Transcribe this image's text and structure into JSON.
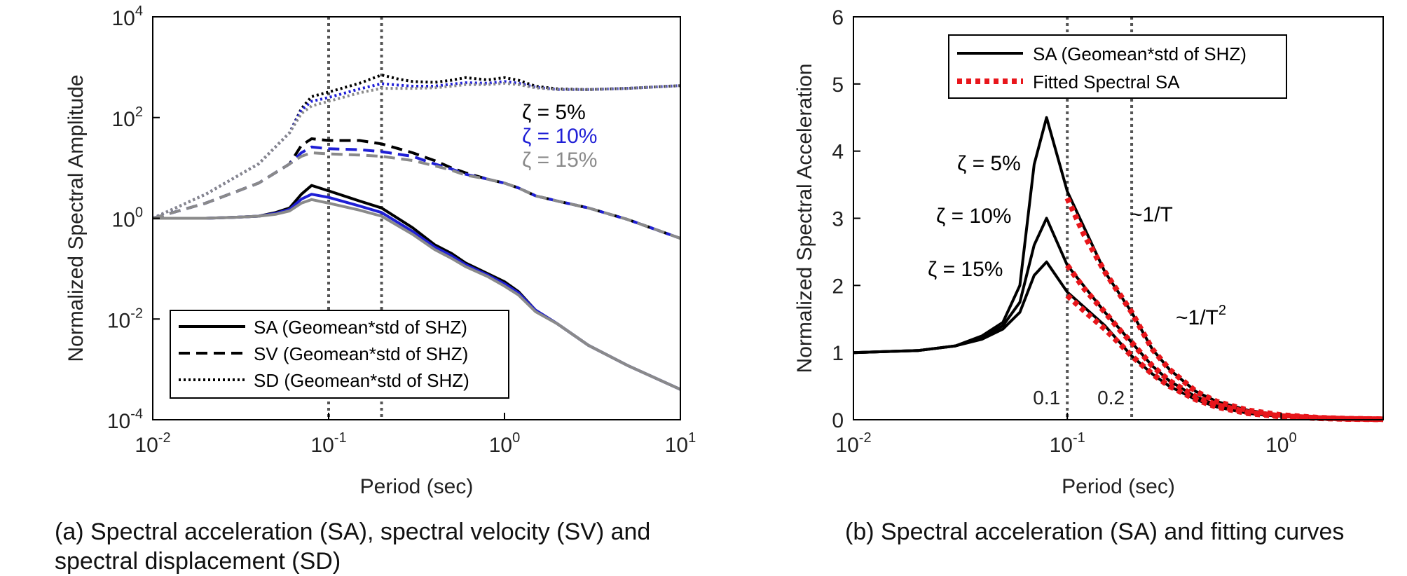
{
  "chart_data": [
    {
      "panel": "a",
      "type": "line",
      "caption": "(a) Spectral acceleration (SA), spectral velocity (SV) and spectral displacement (SD)",
      "xlabel": "Period (sec)",
      "ylabel": "Normalized Spectral Amplitude",
      "xscale": "log",
      "yscale": "log",
      "xlim": [
        0.01,
        10
      ],
      "ylim": [
        0.0001,
        10000
      ],
      "x_ticks": [
        {
          "value": 0.01,
          "label": "10",
          "exp": "-2"
        },
        {
          "value": 0.1,
          "label": "10",
          "exp": "-1"
        },
        {
          "value": 1,
          "label": "10",
          "exp": "0"
        },
        {
          "value": 10,
          "label": "10",
          "exp": "1"
        }
      ],
      "y_ticks": [
        {
          "value": 0.0001,
          "label": "10",
          "exp": "-4"
        },
        {
          "value": 0.01,
          "label": "10",
          "exp": "-2"
        },
        {
          "value": 1,
          "label": "10",
          "exp": "0"
        },
        {
          "value": 100,
          "label": "10",
          "exp": "2"
        },
        {
          "value": 10000,
          "label": "10",
          "exp": "4"
        }
      ],
      "vlines": [
        0.1,
        0.2
      ],
      "grid": false,
      "legend_position": "bottom-left",
      "legend": [
        {
          "label": "SA (Geomean*std of SHZ)",
          "style": "solid"
        },
        {
          "label": "SV (Geomean*std of SHZ)",
          "style": "dashed"
        },
        {
          "label": "SD (Geomean*std of SHZ)",
          "style": "dotted"
        }
      ],
      "annotations": [
        {
          "text": "ζ = 5%",
          "color": "#000000"
        },
        {
          "text": "ζ = 10%",
          "color": "#1f1fd6"
        },
        {
          "text": "ζ = 15%",
          "color": "#8a8a8a"
        }
      ],
      "damping_colors": {
        "5%": "#000000",
        "10%": "#1f1fd6",
        "15%": "#8a8a8a"
      },
      "series": [
        {
          "quantity": "SD",
          "damping": "5%",
          "style": "dotted",
          "color": "#000000",
          "x": [
            0.01,
            0.02,
            0.04,
            0.06,
            0.07,
            0.08,
            0.1,
            0.15,
            0.2,
            0.25,
            0.3,
            0.4,
            0.5,
            0.6,
            0.8,
            1.0,
            1.2,
            1.5,
            2,
            3,
            5,
            10
          ],
          "y": [
            1,
            3,
            12,
            50,
            150,
            260,
            320,
            480,
            700,
            580,
            520,
            500,
            550,
            620,
            560,
            620,
            550,
            420,
            370,
            360,
            380,
            430
          ]
        },
        {
          "quantity": "SD",
          "damping": "10%",
          "style": "dotted",
          "color": "#1f1fd6",
          "x": [
            0.01,
            0.02,
            0.04,
            0.06,
            0.07,
            0.08,
            0.1,
            0.15,
            0.2,
            0.25,
            0.3,
            0.4,
            0.5,
            0.6,
            0.8,
            1.0,
            1.2,
            1.5,
            2,
            3,
            5,
            10
          ],
          "y": [
            1,
            3,
            12,
            50,
            140,
            210,
            250,
            370,
            470,
            440,
            420,
            420,
            460,
            490,
            480,
            520,
            480,
            400,
            360,
            360,
            380,
            430
          ]
        },
        {
          "quantity": "SD",
          "damping": "15%",
          "style": "dotted",
          "color": "#8a8a8a",
          "x": [
            0.01,
            0.02,
            0.04,
            0.06,
            0.07,
            0.08,
            0.1,
            0.15,
            0.2,
            0.25,
            0.3,
            0.4,
            0.5,
            0.6,
            0.8,
            1.0,
            1.2,
            1.5,
            2,
            3,
            5,
            10
          ],
          "y": [
            1,
            3,
            12,
            50,
            120,
            170,
            210,
            310,
            380,
            380,
            380,
            390,
            420,
            450,
            450,
            480,
            450,
            390,
            360,
            360,
            380,
            430
          ]
        },
        {
          "quantity": "SV",
          "damping": "5%",
          "style": "dashed",
          "color": "#000000",
          "x": [
            0.01,
            0.02,
            0.04,
            0.06,
            0.07,
            0.08,
            0.1,
            0.15,
            0.2,
            0.3,
            0.4,
            0.5,
            0.6,
            0.8,
            1.0,
            1.2,
            1.5,
            2,
            3,
            5,
            10
          ],
          "y": [
            1,
            2,
            5,
            12,
            28,
            38,
            35,
            35,
            30,
            20,
            14,
            10,
            8,
            6,
            5,
            4,
            2.8,
            2.2,
            1.6,
            0.95,
            0.4
          ]
        },
        {
          "quantity": "SV",
          "damping": "10%",
          "style": "dashed",
          "color": "#1f1fd6",
          "x": [
            0.01,
            0.02,
            0.04,
            0.06,
            0.07,
            0.08,
            0.1,
            0.15,
            0.2,
            0.3,
            0.4,
            0.5,
            0.6,
            0.8,
            1.0,
            1.2,
            1.5,
            2,
            3,
            5,
            10
          ],
          "y": [
            1,
            2,
            5,
            12,
            20,
            26,
            24,
            23,
            21,
            17,
            12,
            9.5,
            7.5,
            6,
            5,
            4,
            2.8,
            2.2,
            1.6,
            0.95,
            0.4
          ]
        },
        {
          "quantity": "SV",
          "damping": "15%",
          "style": "dashed",
          "color": "#8a8a8a",
          "x": [
            0.01,
            0.02,
            0.04,
            0.06,
            0.07,
            0.08,
            0.1,
            0.15,
            0.2,
            0.3,
            0.4,
            0.5,
            0.6,
            0.8,
            1.0,
            1.2,
            1.5,
            2,
            3,
            5,
            10
          ],
          "y": [
            1,
            2,
            5,
            12,
            17,
            20,
            19,
            18,
            17,
            14,
            11,
            9,
            7.2,
            6,
            5,
            4,
            2.8,
            2.2,
            1.6,
            0.95,
            0.4
          ]
        },
        {
          "quantity": "SA",
          "damping": "5%",
          "style": "solid",
          "color": "#000000",
          "x": [
            0.01,
            0.02,
            0.03,
            0.04,
            0.05,
            0.06,
            0.07,
            0.08,
            0.1,
            0.15,
            0.2,
            0.3,
            0.4,
            0.5,
            0.6,
            0.8,
            1.0,
            1.2,
            1.5,
            2,
            3,
            5,
            10
          ],
          "y": [
            1,
            1,
            1.05,
            1.1,
            1.3,
            1.6,
            3.0,
            4.5,
            3.5,
            2.2,
            1.6,
            0.65,
            0.3,
            0.2,
            0.13,
            0.08,
            0.055,
            0.035,
            0.015,
            0.008,
            0.003,
            0.0012,
            0.0004
          ]
        },
        {
          "quantity": "SA",
          "damping": "10%",
          "style": "solid",
          "color": "#1f1fd6",
          "x": [
            0.01,
            0.02,
            0.03,
            0.04,
            0.05,
            0.06,
            0.07,
            0.08,
            0.1,
            0.15,
            0.2,
            0.3,
            0.4,
            0.5,
            0.6,
            0.8,
            1.0,
            1.2,
            1.5,
            2,
            3,
            5,
            10
          ],
          "y": [
            1,
            1,
            1.05,
            1.1,
            1.25,
            1.5,
            2.4,
            3.0,
            2.6,
            1.75,
            1.3,
            0.55,
            0.27,
            0.18,
            0.12,
            0.075,
            0.05,
            0.033,
            0.015,
            0.008,
            0.003,
            0.0012,
            0.0004
          ]
        },
        {
          "quantity": "SA",
          "damping": "15%",
          "style": "solid",
          "color": "#8a8a8a",
          "x": [
            0.01,
            0.02,
            0.03,
            0.04,
            0.05,
            0.06,
            0.07,
            0.08,
            0.1,
            0.15,
            0.2,
            0.3,
            0.4,
            0.5,
            0.6,
            0.8,
            1.0,
            1.2,
            1.5,
            2,
            3,
            5,
            10
          ],
          "y": [
            1,
            1,
            1.05,
            1.1,
            1.2,
            1.4,
            2.0,
            2.35,
            2.0,
            1.45,
            1.1,
            0.48,
            0.24,
            0.16,
            0.11,
            0.07,
            0.045,
            0.03,
            0.014,
            0.008,
            0.003,
            0.0012,
            0.0004
          ]
        }
      ]
    },
    {
      "panel": "b",
      "type": "line",
      "caption": "(b) Spectral acceleration (SA) and fitting curves",
      "xlabel": "Period (sec)",
      "ylabel": "Normalized Spectral Acceleration",
      "xscale": "log",
      "yscale": "linear",
      "xlim": [
        0.01,
        3
      ],
      "ylim": [
        0,
        6
      ],
      "x_ticks": [
        {
          "value": 0.01,
          "label": "10",
          "exp": "-2"
        },
        {
          "value": 0.1,
          "label": "10",
          "exp": "-1"
        },
        {
          "value": 1,
          "label": "10",
          "exp": "0"
        }
      ],
      "y_ticks": [
        {
          "value": 0,
          "label": "0"
        },
        {
          "value": 1,
          "label": "1"
        },
        {
          "value": 2,
          "label": "2"
        },
        {
          "value": 3,
          "label": "3"
        },
        {
          "value": 4,
          "label": "4"
        },
        {
          "value": 5,
          "label": "5"
        },
        {
          "value": 6,
          "label": "6"
        }
      ],
      "vlines": [
        0.1,
        0.2
      ],
      "vline_labels": [
        "0.1",
        "0.2"
      ],
      "grid": false,
      "legend_position": "top-left",
      "legend": [
        {
          "label": "SA (Geomean*std of SHZ)",
          "style": "solid"
        },
        {
          "label": "Fitted Spectral SA",
          "style": "dotted-red"
        }
      ],
      "annotations": [
        {
          "text": "ζ = 5%"
        },
        {
          "text": "ζ = 10%"
        },
        {
          "text": "ζ = 15%"
        },
        {
          "text": "~1/T"
        },
        {
          "text": "~1/T",
          "sup": "2"
        }
      ],
      "series": [
        {
          "name": "SA (Geomean*std of SHZ)",
          "damping": "5%",
          "style": "solid",
          "color": "#000000",
          "x": [
            0.01,
            0.02,
            0.03,
            0.04,
            0.05,
            0.06,
            0.07,
            0.08,
            0.1,
            0.15,
            0.2,
            0.25,
            0.3,
            0.4,
            0.5,
            0.7,
            1.0,
            1.5,
            2,
            3
          ],
          "y": [
            1,
            1.03,
            1.1,
            1.25,
            1.45,
            2.0,
            3.8,
            4.5,
            3.4,
            2.2,
            1.6,
            1.05,
            0.75,
            0.42,
            0.27,
            0.14,
            0.07,
            0.03,
            0.017,
            0.008
          ]
        },
        {
          "name": "SA (Geomean*std of SHZ)",
          "damping": "10%",
          "style": "solid",
          "color": "#000000",
          "x": [
            0.01,
            0.02,
            0.03,
            0.04,
            0.05,
            0.06,
            0.07,
            0.08,
            0.1,
            0.15,
            0.2,
            0.25,
            0.3,
            0.4,
            0.5,
            0.7,
            1.0,
            1.5,
            2,
            3
          ],
          "y": [
            1,
            1.03,
            1.1,
            1.22,
            1.4,
            1.75,
            2.6,
            3.0,
            2.3,
            1.6,
            1.15,
            0.8,
            0.58,
            0.34,
            0.22,
            0.11,
            0.055,
            0.025,
            0.014,
            0.007
          ]
        },
        {
          "name": "SA (Geomean*std of SHZ)",
          "damping": "15%",
          "style": "solid",
          "color": "#000000",
          "x": [
            0.01,
            0.02,
            0.03,
            0.04,
            0.05,
            0.06,
            0.07,
            0.08,
            0.1,
            0.15,
            0.2,
            0.25,
            0.3,
            0.4,
            0.5,
            0.7,
            1.0,
            1.5,
            2,
            3
          ],
          "y": [
            1,
            1.03,
            1.1,
            1.2,
            1.35,
            1.6,
            2.15,
            2.35,
            1.9,
            1.4,
            0.95,
            0.68,
            0.5,
            0.3,
            0.19,
            0.095,
            0.048,
            0.022,
            0.012,
            0.006
          ]
        },
        {
          "name": "Fitted Spectral SA",
          "damping": "5%",
          "style": "dotted",
          "color": "#e8161b",
          "x": [
            0.1,
            0.12,
            0.15,
            0.18,
            0.2,
            0.25,
            0.3,
            0.4,
            0.5,
            0.7,
            1.0,
            1.5,
            2,
            3
          ],
          "y": [
            3.3,
            2.75,
            2.2,
            1.82,
            1.6,
            1.05,
            0.75,
            0.42,
            0.27,
            0.14,
            0.07,
            0.03,
            0.017,
            0.008
          ]
        },
        {
          "name": "Fitted Spectral SA",
          "damping": "10%",
          "style": "dotted",
          "color": "#e8161b",
          "x": [
            0.1,
            0.12,
            0.15,
            0.18,
            0.2,
            0.25,
            0.3,
            0.4,
            0.5,
            0.7,
            1.0,
            1.5,
            2,
            3
          ],
          "y": [
            2.3,
            1.95,
            1.6,
            1.3,
            1.15,
            0.8,
            0.58,
            0.34,
            0.22,
            0.11,
            0.055,
            0.025,
            0.014,
            0.007
          ]
        },
        {
          "name": "Fitted Spectral SA",
          "damping": "15%",
          "style": "dotted",
          "color": "#e8161b",
          "x": [
            0.1,
            0.12,
            0.15,
            0.18,
            0.2,
            0.25,
            0.3,
            0.4,
            0.5,
            0.7,
            1.0,
            1.5,
            2,
            3
          ],
          "y": [
            1.85,
            1.62,
            1.35,
            1.1,
            0.95,
            0.68,
            0.5,
            0.3,
            0.19,
            0.095,
            0.048,
            0.022,
            0.012,
            0.006
          ]
        }
      ]
    }
  ]
}
